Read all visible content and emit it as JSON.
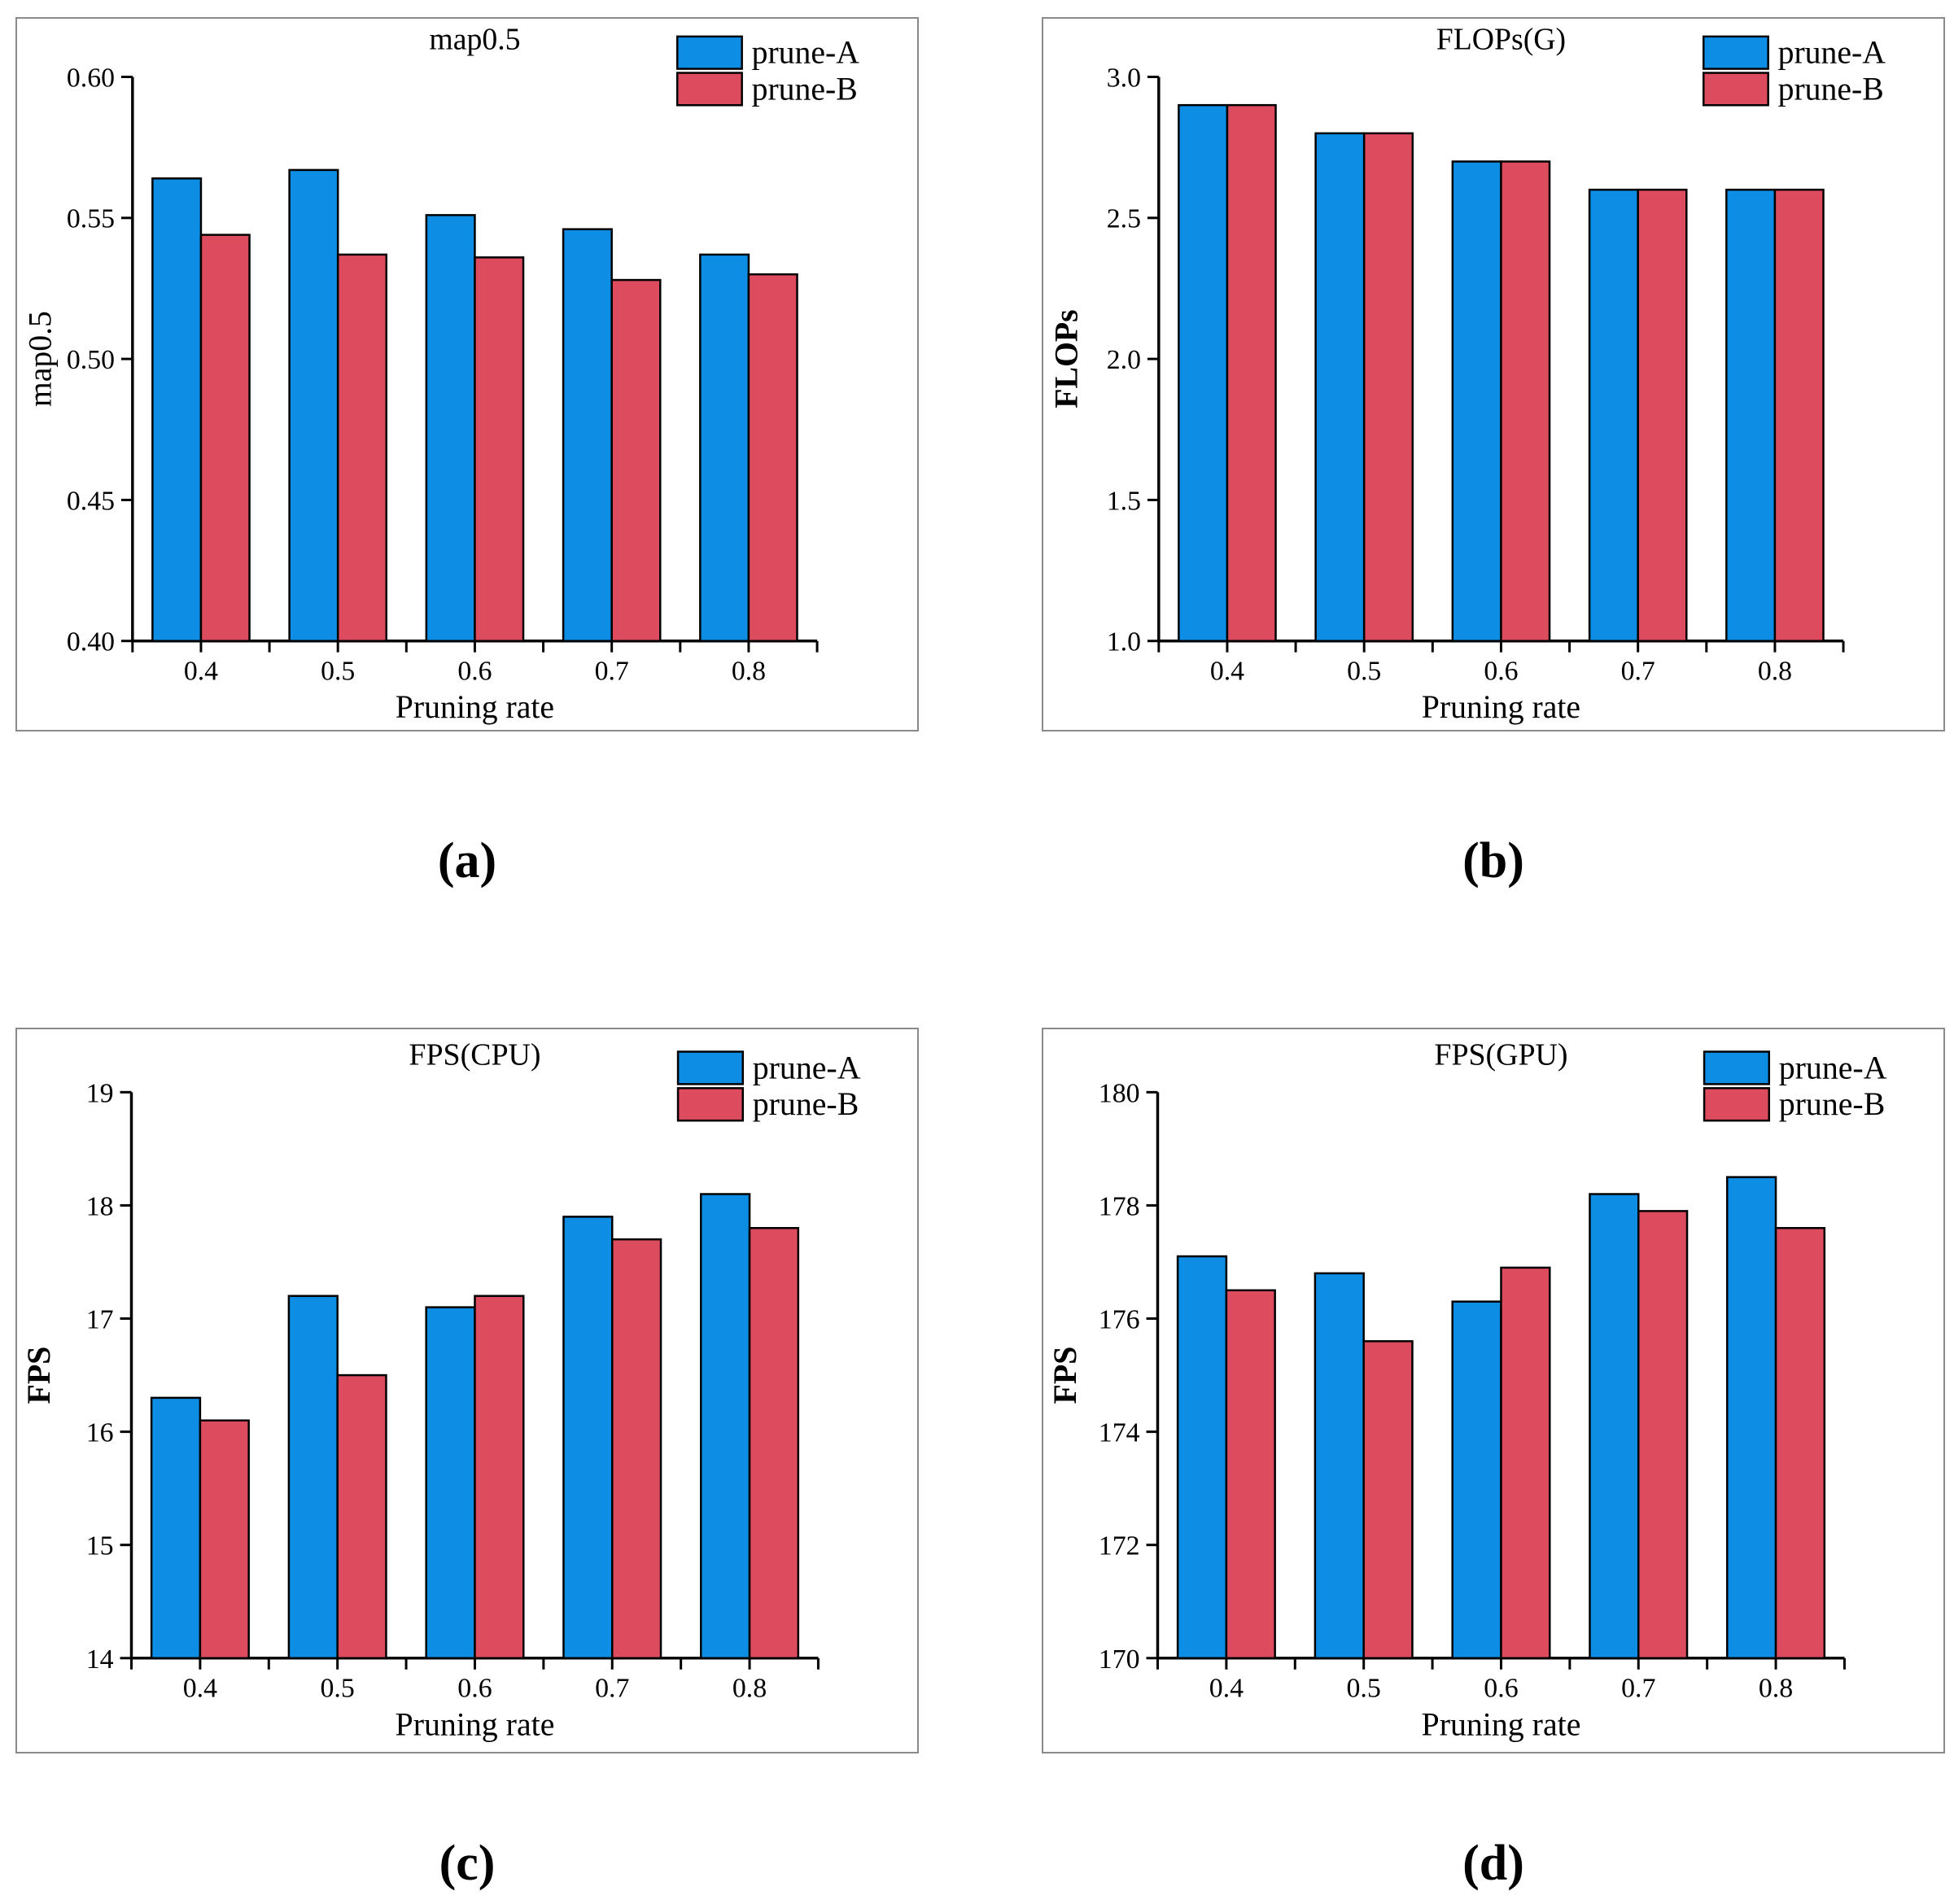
{
  "page": {
    "background": "#ffffff"
  },
  "colors": {
    "prune_a": "#0d8de3",
    "prune_b": "#dc4c5e",
    "bar_outline": "#000000",
    "axis": "#000000",
    "text": "#000000",
    "panel_border": "#8a8a8a"
  },
  "captions": {
    "a": "(a)",
    "b": "(b)",
    "c": "(c)",
    "d": "(d)"
  },
  "chart_data": [
    {
      "panel": "a",
      "type": "bar",
      "title": "map0.5",
      "xlabel": "Pruning rate",
      "ylabel": "map0.5",
      "ylabel_bold": false,
      "categories": [
        "0.4",
        "0.5",
        "0.6",
        "0.7",
        "0.8"
      ],
      "series": [
        {
          "name": "prune-A",
          "color": "#0d8de3",
          "values": [
            0.564,
            0.567,
            0.551,
            0.546,
            0.537
          ]
        },
        {
          "name": "prune-B",
          "color": "#dc4c5e",
          "values": [
            0.544,
            0.537,
            0.536,
            0.528,
            0.53
          ]
        }
      ],
      "ylim": [
        0.4,
        0.6
      ],
      "yticks": [
        0.4,
        0.45,
        0.5,
        0.55,
        0.6
      ],
      "ytick_decimals": 2,
      "grid": false,
      "legend_position": "top-right"
    },
    {
      "panel": "b",
      "type": "bar",
      "title": "FLOPs(G)",
      "xlabel": "Pruning rate",
      "ylabel": "FLOPs",
      "ylabel_bold": true,
      "categories": [
        "0.4",
        "0.5",
        "0.6",
        "0.7",
        "0.8"
      ],
      "series": [
        {
          "name": "prune-A",
          "color": "#0d8de3",
          "values": [
            2.9,
            2.8,
            2.7,
            2.6,
            2.6
          ]
        },
        {
          "name": "prune-B",
          "color": "#dc4c5e",
          "values": [
            2.9,
            2.8,
            2.7,
            2.6,
            2.6
          ]
        }
      ],
      "ylim": [
        1.0,
        3.0
      ],
      "yticks": [
        1.0,
        1.5,
        2.0,
        2.5,
        3.0
      ],
      "ytick_decimals": 1,
      "grid": false,
      "legend_position": "top-right"
    },
    {
      "panel": "c",
      "type": "bar",
      "title": "FPS(CPU)",
      "xlabel": "Pruning rate",
      "ylabel": "FPS",
      "ylabel_bold": true,
      "categories": [
        "0.4",
        "0.5",
        "0.6",
        "0.7",
        "0.8"
      ],
      "series": [
        {
          "name": "prune-A",
          "color": "#0d8de3",
          "values": [
            16.3,
            17.2,
            17.1,
            17.9,
            18.1
          ]
        },
        {
          "name": "prune-B",
          "color": "#dc4c5e",
          "values": [
            16.1,
            16.5,
            17.2,
            17.7,
            17.8
          ]
        }
      ],
      "ylim": [
        14,
        19
      ],
      "yticks": [
        14,
        15,
        16,
        17,
        18,
        19
      ],
      "ytick_decimals": 0,
      "grid": false,
      "legend_position": "top-right"
    },
    {
      "panel": "d",
      "type": "bar",
      "title": "FPS(GPU)",
      "xlabel": "Pruning rate",
      "ylabel": "FPS",
      "ylabel_bold": true,
      "categories": [
        "0.4",
        "0.5",
        "0.6",
        "0.7",
        "0.8"
      ],
      "series": [
        {
          "name": "prune-A",
          "color": "#0d8de3",
          "values": [
            177.1,
            176.8,
            176.3,
            178.2,
            178.5
          ]
        },
        {
          "name": "prune-B",
          "color": "#dc4c5e",
          "values": [
            176.5,
            175.6,
            176.9,
            177.9,
            177.6
          ]
        }
      ],
      "ylim": [
        170,
        180
      ],
      "yticks": [
        170,
        172,
        174,
        176,
        178,
        180
      ],
      "ytick_decimals": 0,
      "grid": false,
      "legend_position": "top-right"
    }
  ]
}
